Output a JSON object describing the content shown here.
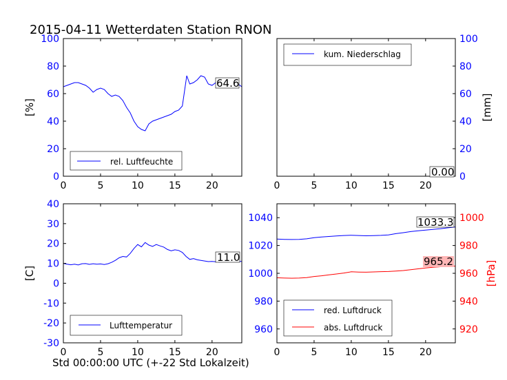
{
  "title": "2015-04-11 Wetterdaten Station RNON",
  "footer_xlabel": "Std 00:00:00 UTC (+-22 Std Lokalzeit)",
  "colors": {
    "blue": "#0000ff",
    "red": "#ff0000",
    "red_box": "#ffb6b6"
  },
  "chart_data": [
    {
      "id": "humidity",
      "type": "line",
      "ylabel": "[%]",
      "xlim": [
        0,
        24
      ],
      "ylim": [
        0,
        100
      ],
      "xticks": [
        0,
        5,
        10,
        15,
        20
      ],
      "yticks": [
        0,
        20,
        40,
        60,
        80,
        100
      ],
      "legend_placement": "lower-left",
      "series": [
        {
          "name": "rel. Luftfeuchte",
          "color": "#0000ff",
          "x": [
            0,
            0.5,
            1,
            1.5,
            2,
            2.5,
            3,
            3.5,
            4,
            4.5,
            5,
            5.5,
            6,
            6.5,
            7,
            7.5,
            8,
            8.5,
            9,
            9.5,
            10,
            10.5,
            11,
            11.5,
            12,
            12.5,
            13,
            13.5,
            14,
            14.5,
            15,
            15.5,
            16,
            16.3,
            16.6,
            17,
            17.5,
            18,
            18.5,
            19,
            19.5,
            20,
            20.5,
            21,
            21.5,
            22,
            22.5,
            23,
            23.5,
            24
          ],
          "y": [
            65,
            66,
            67,
            68,
            68,
            67,
            66,
            64,
            61,
            63,
            64,
            63,
            60,
            58,
            59,
            58,
            55,
            50,
            46,
            40,
            36,
            34,
            33,
            38,
            40,
            41,
            42,
            43,
            44,
            45,
            47,
            48,
            51,
            62,
            73,
            67,
            68,
            70,
            73,
            72,
            67,
            66,
            68,
            70,
            69,
            70,
            67,
            66,
            67,
            65
          ]
        }
      ],
      "last_value_label": "64.6"
    },
    {
      "id": "precipitation",
      "type": "line",
      "ylabel": "[mm]",
      "xlim": [
        0,
        24
      ],
      "ylim": [
        0,
        100
      ],
      "xticks": [
        0,
        5,
        10,
        15,
        20
      ],
      "yticks": [
        0,
        20,
        40,
        60,
        80,
        100
      ],
      "legend_placement": "upper-left",
      "series": [
        {
          "name": "kum. Niederschlag",
          "color": "#0000ff",
          "x": [
            0,
            24
          ],
          "y": [
            0,
            0
          ]
        }
      ],
      "last_value_label": "0.00"
    },
    {
      "id": "temperature",
      "type": "line",
      "ylabel": "[C]",
      "xlim": [
        0,
        24
      ],
      "ylim": [
        -30,
        40
      ],
      "xticks": [
        0,
        5,
        10,
        15,
        20
      ],
      "yticks": [
        -30,
        -20,
        -10,
        0,
        10,
        20,
        30,
        40
      ],
      "legend_placement": "lower-left",
      "series": [
        {
          "name": "Lufttemperatur",
          "color": "#0000ff",
          "x": [
            0,
            0.5,
            1,
            1.5,
            2,
            2.5,
            3,
            3.5,
            4,
            4.5,
            5,
            5.5,
            6,
            6.5,
            7,
            7.5,
            8,
            8.5,
            9,
            9.5,
            10,
            10.5,
            11,
            11.5,
            12,
            12.5,
            13,
            13.5,
            14,
            14.5,
            15,
            15.5,
            16,
            16.5,
            17,
            17.5,
            18,
            18.5,
            19,
            19.5,
            20,
            20.5,
            21,
            21.5,
            22,
            22.5,
            23,
            23.5,
            24
          ],
          "y": [
            10,
            9.6,
            9.3,
            9.6,
            9.2,
            9.8,
            9.9,
            9.5,
            9.8,
            9.6,
            9.7,
            9.4,
            9.8,
            10.5,
            11.5,
            12.8,
            13.5,
            13.2,
            15,
            17.5,
            19.5,
            18.3,
            20.5,
            19.2,
            18.5,
            19.5,
            18.8,
            18.2,
            17,
            16.3,
            16.8,
            16.5,
            15.5,
            13.5,
            12,
            12.4,
            11.8,
            11.5,
            11.2,
            10.9,
            11,
            10.8,
            10.6,
            11,
            10.8,
            11.1,
            11.3,
            11.0,
            11.0
          ]
        }
      ],
      "last_value_label": "11.0"
    },
    {
      "id": "pressure",
      "type": "line",
      "ylabel_right": "[hPa]",
      "xlim": [
        0,
        24
      ],
      "ylim_left": [
        950,
        1050
      ],
      "ylim_right": [
        910,
        1010
      ],
      "xticks": [
        0,
        5,
        10,
        15,
        20
      ],
      "yticks_left": [
        960,
        980,
        1000,
        1020,
        1040
      ],
      "yticks_right": [
        920,
        940,
        960,
        980,
        1000
      ],
      "legend_placement": "lower-left",
      "series": [
        {
          "name": "red. Luftdruck",
          "color": "#0000ff",
          "axis": "left",
          "x": [
            0,
            1,
            2,
            3,
            4,
            5,
            6,
            7,
            8,
            9,
            10,
            11,
            12,
            13,
            14,
            15,
            16,
            17,
            18,
            19,
            20,
            21,
            22,
            23,
            24
          ],
          "y": [
            1024.6,
            1024.4,
            1024.3,
            1024.4,
            1024.8,
            1025.6,
            1026.1,
            1026.5,
            1026.9,
            1027.2,
            1027.4,
            1027.2,
            1027.0,
            1027.1,
            1027.3,
            1027.6,
            1028.5,
            1029.2,
            1030.0,
            1030.6,
            1031.1,
            1031.6,
            1032.1,
            1032.7,
            1033.3
          ]
        },
        {
          "name": "abs. Luftdruck",
          "color": "#ff0000",
          "axis": "right",
          "x": [
            0,
            1,
            2,
            3,
            4,
            5,
            6,
            7,
            8,
            9,
            10,
            11,
            12,
            13,
            14,
            15,
            16,
            17,
            18,
            19,
            20,
            21,
            22,
            23,
            24
          ],
          "y": [
            956.8,
            956.6,
            956.5,
            956.6,
            956.9,
            957.7,
            958.2,
            958.9,
            959.5,
            960.2,
            961.1,
            960.9,
            960.8,
            961.0,
            961.2,
            961.3,
            961.6,
            962.0,
            962.6,
            963.2,
            963.8,
            964.3,
            964.7,
            965.0,
            965.2
          ]
        }
      ],
      "last_value_labels": [
        "1033.3",
        "965.2"
      ]
    }
  ]
}
